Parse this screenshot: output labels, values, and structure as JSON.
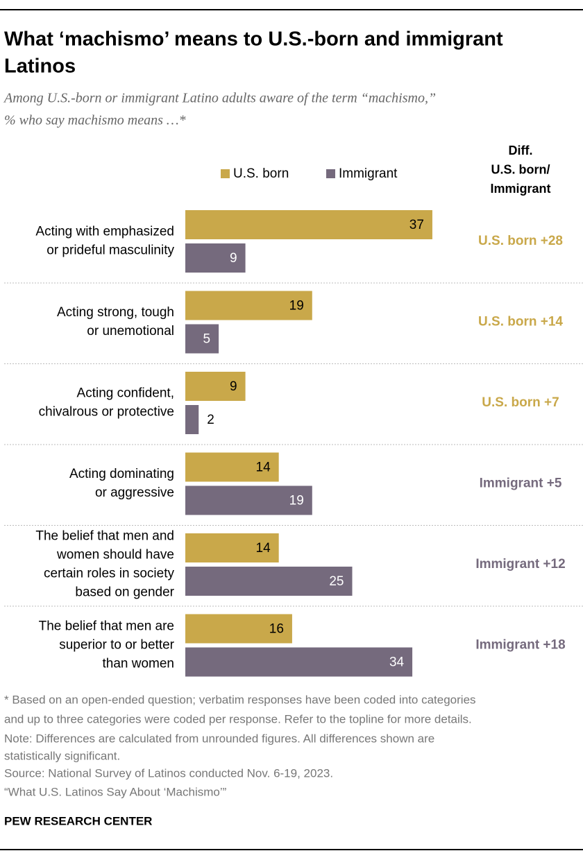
{
  "chart_data": {
    "type": "bar",
    "orientation": "horizontal",
    "title": [
      "What ‘machismo’ means to U.S.-born and immigrant",
      "Latinos"
    ],
    "subtitle": [
      "Among U.S.-born or immigrant Latino adults aware of the term “machismo,”",
      "% who say machismo means …*"
    ],
    "categories": [
      [
        "Acting with emphasized",
        "or prideful masculinity"
      ],
      [
        "Acting strong, tough",
        "or unemotional"
      ],
      [
        "Acting confident,",
        "chivalrous or protective"
      ],
      [
        "Acting dominating",
        "or aggressive"
      ],
      [
        "The belief that men and",
        "women should have",
        "certain roles in society",
        "based on gender"
      ],
      [
        "The belief that men are",
        "superior to or better",
        "than women"
      ]
    ],
    "series": [
      {
        "name": "U.S. born",
        "color": "#c9a84a",
        "values": [
          37,
          19,
          9,
          14,
          14,
          16
        ]
      },
      {
        "name": "Immigrant",
        "color": "#756a7d",
        "values": [
          9,
          5,
          2,
          19,
          25,
          34
        ]
      }
    ],
    "diff_title": [
      "Diff.",
      "U.S. born/",
      "Immigrant"
    ],
    "diff_labels": [
      "U.S. born +28",
      "U.S. born +14",
      "U.S. born +7",
      "Immigrant +5",
      "Immigrant +12",
      "Immigrant +18"
    ],
    "notes": [
      "* Based on an open-ended question; verbatim responses have been coded into categories",
      "and up to three categories were coded per response. Refer to the topline for more details.",
      "Note: Differences are calculated from unrounded figures. All differences shown are",
      "statistically significant.",
      "Source: National Survey of Latinos conducted Nov. 6-19, 2023.",
      "“What U.S. Latinos Say About ‘Machismo’”"
    ],
    "source_org": "PEW RESEARCH CENTER"
  }
}
